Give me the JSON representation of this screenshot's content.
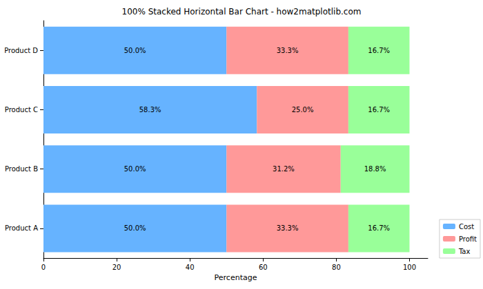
{
  "chart_data": {
    "type": "bar",
    "title": "100% Stacked Horizontal Bar Chart - how2matplotlib.com",
    "orientation": "horizontal",
    "stacked": true,
    "data_labels": true,
    "x_label": "Percentage",
    "categories": [
      "Product A",
      "Product B",
      "Product C",
      "Product D"
    ],
    "series": [
      {
        "name": "Cost",
        "color": "#66b3ff",
        "values": [
          50.0,
          50.0,
          58.3,
          50.0
        ],
        "value_labels": [
          "50.0%",
          "50.0%",
          "58.3%",
          "50.0%"
        ]
      },
      {
        "name": "Profit",
        "color": "#ff9999",
        "values": [
          33.3,
          31.2,
          25.0,
          33.3
        ],
        "value_labels": [
          "33.3%",
          "31.2%",
          "25.0%",
          "33.3%"
        ]
      },
      {
        "name": "Tax",
        "color": "#99ff99",
        "values": [
          16.7,
          18.8,
          16.7,
          16.7
        ],
        "value_labels": [
          "16.7%",
          "18.8%",
          "16.7%",
          "16.7%"
        ]
      }
    ],
    "xlim": [
      0,
      105
    ],
    "xticks": [
      0,
      20,
      40,
      60,
      80,
      100
    ],
    "grid": false,
    "legend": "lower right"
  }
}
